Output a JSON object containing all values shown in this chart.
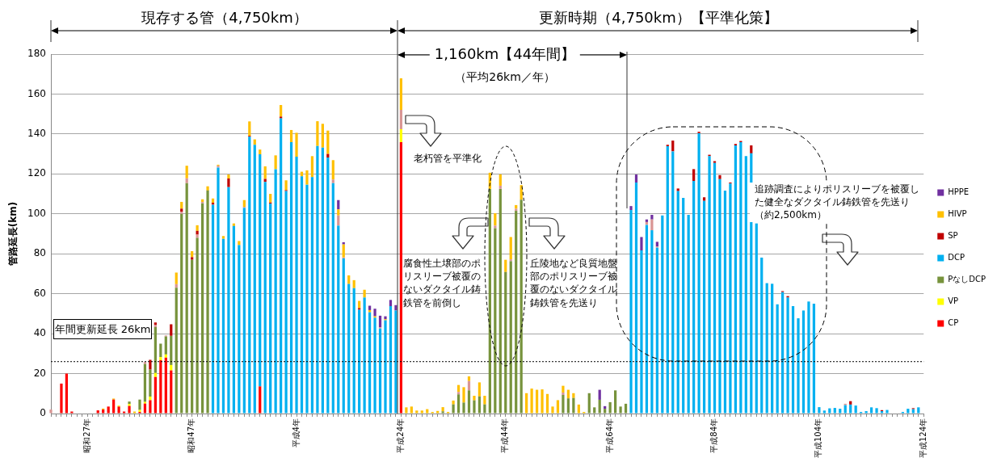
{
  "chart_data": {
    "type": "bar",
    "stacked": true,
    "ylabel": "管路延長(km)",
    "categories": [
      null,
      null,
      null,
      null,
      null,
      null,
      null,
      "昭和27年",
      null,
      null,
      null,
      null,
      null,
      null,
      null,
      null,
      null,
      null,
      null,
      null,
      null,
      null,
      null,
      null,
      null,
      null,
      null,
      "昭和47年",
      null,
      null,
      null,
      null,
      null,
      null,
      null,
      null,
      null,
      null,
      null,
      null,
      null,
      null,
      null,
      null,
      null,
      null,
      null,
      "平成4年",
      null,
      null,
      null,
      null,
      null,
      null,
      null,
      null,
      null,
      null,
      null,
      null,
      null,
      null,
      null,
      null,
      null,
      null,
      null,
      "平成24年",
      null,
      null,
      null,
      null,
      null,
      null,
      null,
      null,
      null,
      null,
      null,
      null,
      null,
      null,
      null,
      null,
      null,
      null,
      null,
      "平成44年",
      null,
      null,
      null,
      null,
      null,
      null,
      null,
      null,
      null,
      null,
      null,
      null,
      null,
      null,
      null,
      null,
      null,
      null,
      null,
      "平成64年",
      null,
      null,
      null,
      null,
      null,
      null,
      null,
      null,
      null,
      null,
      null,
      null,
      null,
      null,
      null,
      null,
      null,
      null,
      null,
      "平成84年",
      null,
      null,
      null,
      null,
      null,
      null,
      null,
      null,
      null,
      null,
      null,
      null,
      null,
      null,
      null,
      null,
      null,
      null,
      null,
      "平成104年",
      null,
      null,
      null,
      null,
      null,
      null,
      null,
      null,
      null,
      null,
      null,
      null,
      null,
      null,
      null,
      null,
      null,
      null,
      null,
      "平成124年"
    ],
    "series": [
      {
        "name": "CP",
        "color": "#ff0000",
        "values": [
          0,
          0,
          15,
          20,
          1,
          0,
          0,
          0,
          0,
          1.6,
          2,
          3.5,
          7,
          3.5,
          1,
          3.8,
          0,
          0.8,
          5,
          6.7,
          18.3,
          26.7,
          28,
          21.6,
          0,
          0,
          0,
          0,
          0,
          0,
          0,
          0,
          0,
          0,
          0,
          0,
          0,
          0,
          0,
          0,
          13.6,
          0,
          0,
          0,
          0,
          0,
          0,
          0,
          0,
          0,
          0,
          0,
          0,
          0,
          0,
          0,
          0,
          0,
          0,
          0,
          0,
          0,
          0,
          0,
          0,
          0,
          0,
          135.9,
          0,
          0,
          0,
          0,
          0,
          0,
          0,
          0,
          0,
          0,
          0,
          0,
          0,
          0,
          0,
          0,
          0,
          0,
          0,
          0,
          0,
          0,
          0,
          0,
          0,
          0,
          0,
          0,
          0,
          0,
          0,
          0,
          0,
          0,
          0,
          0,
          0,
          0,
          0,
          0,
          0,
          0,
          0,
          0,
          0,
          0,
          0,
          0,
          0,
          0,
          0,
          0,
          0,
          0,
          0,
          0,
          0,
          0,
          0,
          0,
          0,
          0,
          0,
          0,
          0,
          0,
          0,
          0,
          0,
          0,
          0,
          0,
          0,
          0,
          0,
          0,
          0,
          0,
          0,
          0,
          0,
          0,
          0,
          0,
          0,
          0,
          0,
          0,
          0,
          0,
          0,
          0,
          0,
          0,
          0,
          0,
          0,
          0,
          0,
          0
        ]
      },
      {
        "name": "VP",
        "color": "#ffff00",
        "values": [
          0,
          0,
          0,
          0,
          0,
          0,
          0,
          0,
          0,
          0,
          0,
          0,
          0,
          0.5,
          0,
          1,
          0,
          1,
          0.8,
          1.8,
          2,
          1.6,
          1.6,
          2.7,
          0,
          0,
          0,
          0,
          0,
          0,
          0,
          0,
          0,
          0,
          0,
          0,
          0,
          0,
          0,
          0,
          0,
          0,
          0,
          0,
          0,
          0,
          0,
          0,
          0,
          0,
          0,
          0,
          0,
          0,
          0,
          0,
          0,
          0,
          0,
          0,
          0,
          0,
          0,
          0,
          0,
          0,
          0,
          6.5,
          0,
          0,
          0,
          0,
          0,
          0,
          0,
          0,
          0,
          0,
          0,
          0,
          0,
          0,
          0,
          0,
          0,
          0,
          0,
          0,
          0,
          0,
          0,
          0,
          0,
          0,
          0,
          0,
          0,
          0,
          0,
          0,
          0,
          0,
          0,
          0,
          0,
          0,
          0,
          0,
          0,
          0,
          0,
          0,
          0,
          0,
          0,
          0,
          0,
          0,
          0,
          0,
          0,
          0,
          0,
          0,
          0,
          0,
          0,
          0,
          0,
          0,
          0,
          0,
          0,
          0,
          0,
          0,
          0,
          0,
          0,
          0,
          0,
          0,
          0,
          0,
          0,
          0,
          0,
          0,
          0,
          0,
          0,
          0,
          0,
          0,
          0,
          0,
          0,
          0,
          0,
          0,
          0,
          0,
          0,
          0,
          0,
          0,
          0,
          0
        ]
      },
      {
        "name": "PなしDCP",
        "color": "#77933c",
        "values": [
          0,
          0,
          0,
          0,
          0,
          0,
          0,
          0,
          0,
          0,
          0,
          0,
          0,
          0,
          0,
          1.2,
          0,
          5.2,
          19,
          13.5,
          23,
          6.7,
          9,
          14.6,
          63,
          100,
          115.4,
          77,
          88,
          105.3,
          111.7,
          0,
          0,
          0,
          0,
          0,
          0,
          0,
          0,
          0,
          0,
          0,
          0,
          0,
          0,
          0,
          0,
          0,
          0,
          0,
          0,
          0,
          0,
          0,
          0,
          0,
          0,
          0,
          0,
          0,
          0,
          0,
          0,
          0,
          0,
          0,
          0,
          0,
          0,
          0,
          0,
          0,
          0,
          0,
          0,
          1.1,
          0,
          4.6,
          9.6,
          5.5,
          11.6,
          6.6,
          8.6,
          4.6,
          112.5,
          92.8,
          112.5,
          70.9,
          76.3,
          101.5,
          107.1,
          0,
          0,
          0,
          0,
          0,
          0,
          0,
          9.3,
          7.6,
          7.8,
          0,
          0,
          10.2,
          3.1,
          6.9,
          2.4,
          5.7,
          11.6,
          3.5,
          4.9,
          0,
          0,
          0,
          0,
          0,
          0,
          0,
          0,
          0,
          0,
          0,
          0,
          0,
          0,
          0,
          0,
          0,
          0,
          0,
          0,
          0,
          0,
          0,
          0,
          0,
          0,
          0,
          0,
          0,
          0,
          0,
          0,
          0,
          0,
          0,
          0,
          0,
          0,
          0,
          0,
          0,
          0,
          0,
          0,
          0,
          0,
          0,
          0,
          0,
          0,
          0,
          0,
          0,
          0,
          0,
          0,
          0
        ]
      },
      {
        "name": "DCP",
        "color": "#00b0f0",
        "values": [
          0,
          0,
          0,
          0,
          0,
          0,
          0,
          0,
          0,
          0,
          0,
          0,
          0,
          0,
          0,
          0,
          0,
          0,
          0,
          0,
          0,
          0,
          0,
          0,
          0,
          0,
          0,
          0,
          0,
          0,
          0,
          104.6,
          123.2,
          87.5,
          113.4,
          93.9,
          84.4,
          103,
          138.6,
          134.6,
          116.2,
          116,
          105.2,
          122.4,
          147.8,
          111.4,
          135.9,
          128.6,
          118.8,
          114.6,
          118.4,
          134,
          133.2,
          128.2,
          115.4,
          94.1,
          77.7,
          64.9,
          62.8,
          52,
          58.1,
          50.7,
          48,
          42.6,
          46.7,
          53.8,
          51.6,
          0,
          0,
          0,
          0,
          0,
          0,
          0,
          0,
          0,
          0,
          0,
          0,
          0,
          0,
          0,
          0,
          0,
          0,
          0,
          0,
          0,
          0,
          0,
          0,
          0,
          0,
          0,
          0,
          0,
          0,
          0,
          0,
          0,
          0,
          0,
          0,
          0,
          0,
          0,
          0,
          0,
          0,
          0,
          0,
          101.9,
          115.7,
          81.7,
          94.5,
          91.8,
          83.1,
          99.2,
          133.9,
          131.3,
          111.4,
          108,
          99.5,
          116.5,
          140.4,
          106.5,
          128.9,
          125.5,
          117.4,
          111.6,
          115.2,
          134.3,
          135.9,
          128.9,
          130.3,
          95.2,
          78.1,
          65.3,
          65,
          54.7,
          60.8,
          58.1,
          53.8,
          47.7,
          51.6,
          56.1,
          55,
          3.2,
          1.5,
          2.6,
          2.8,
          2.4,
          4.2,
          4.5,
          4,
          0.8,
          1.2,
          3.1,
          2.7,
          1.2,
          1.8,
          0,
          0,
          0.8,
          2.4,
          2.2,
          3.1,
          0
        ]
      },
      {
        "color": "#d99694",
        "values": [
          2,
          0,
          0,
          0,
          0,
          0,
          0,
          0,
          0,
          0,
          0,
          0,
          0,
          0,
          0,
          0,
          0,
          0,
          1,
          0,
          1.2,
          0,
          0.5,
          0,
          1.8,
          1,
          2.4,
          0,
          1.6,
          0.7,
          0,
          0,
          0.9,
          0,
          0,
          0,
          0,
          0.5,
          0,
          0,
          0,
          0,
          0,
          0,
          0,
          0,
          0,
          0,
          0,
          0,
          0,
          0,
          0,
          0,
          1.8,
          5.1,
          0.5,
          0,
          0,
          0,
          0,
          0,
          0,
          0.5,
          0,
          0,
          0,
          9.7,
          0,
          0,
          0,
          0,
          0,
          0,
          0,
          0,
          0,
          0,
          1.2,
          0,
          4.7,
          0,
          0,
          0,
          0,
          1.3,
          1.6,
          0,
          0.9,
          1.1,
          0,
          0,
          0,
          0,
          0,
          0,
          0,
          0,
          1.2,
          0,
          0,
          0,
          0,
          0,
          0,
          0,
          0,
          0,
          0,
          0,
          0,
          0,
          0,
          0,
          1.4,
          5.4,
          0.5,
          0,
          0,
          0,
          0,
          0,
          0,
          0,
          0,
          0,
          0,
          0,
          0,
          0,
          0,
          0,
          0,
          0,
          0,
          0,
          0,
          0,
          0,
          0,
          0,
          0,
          0,
          0,
          0,
          0,
          0,
          0,
          0,
          0,
          0,
          0,
          0.7,
          0,
          0,
          0,
          0,
          0,
          0,
          0,
          0,
          0,
          0,
          0,
          0,
          0,
          0,
          0
        ]
      },
      {
        "name": "SP",
        "color": "#c00000",
        "values": [
          0,
          0,
          0,
          0,
          0,
          0,
          0,
          0,
          0,
          0,
          0,
          0,
          0,
          0,
          0,
          0,
          0,
          0,
          0,
          4.9,
          1.1,
          0,
          0,
          5.8,
          0,
          1.6,
          0,
          1.3,
          1.9,
          0,
          0,
          1,
          0,
          0,
          4.3,
          0,
          0,
          0,
          0.5,
          0,
          0,
          1.5,
          0.5,
          0,
          0.9,
          0.5,
          0,
          0,
          0,
          0,
          0,
          0,
          0,
          1.8,
          0,
          0,
          0,
          0,
          0,
          0.8,
          0,
          0,
          0,
          0,
          0,
          0,
          0,
          0,
          0,
          0,
          0,
          0,
          0,
          0,
          0,
          0,
          0,
          0,
          0,
          0,
          0,
          0,
          0,
          0,
          0,
          0,
          0,
          0,
          0,
          0,
          0,
          0,
          0,
          0,
          0,
          0,
          0,
          0,
          0,
          0,
          0,
          0,
          0,
          0,
          0,
          0,
          0,
          0,
          0,
          0,
          0,
          0,
          0,
          0,
          0,
          0,
          0,
          0,
          0.7,
          5.4,
          1.3,
          0,
          0,
          5.9,
          0.7,
          1.8,
          0.7,
          0.9,
          2,
          0,
          0.5,
          0.7,
          0.6,
          0,
          4,
          0,
          0,
          0,
          0,
          0,
          0.5,
          0.7,
          0,
          0,
          0,
          0,
          0,
          0,
          0,
          0,
          0,
          0,
          0,
          1.7,
          0,
          0,
          0,
          0,
          0,
          0.5,
          0,
          0,
          0,
          0,
          0,
          0.5,
          0,
          0
        ]
      },
      {
        "name": "HIVP",
        "color": "#ffc000",
        "values": [
          0,
          0,
          0,
          0,
          0,
          0,
          0,
          0,
          0,
          0,
          0.5,
          0,
          0.5,
          0,
          0,
          0,
          1,
          0,
          0,
          0,
          0,
          0,
          0,
          0,
          5.8,
          3.4,
          6.3,
          3,
          2.8,
          1.3,
          2.1,
          2.1,
          0.5,
          1.4,
          2,
          1.3,
          2,
          3.4,
          7.2,
          2.7,
          2.4,
          6.3,
          4.3,
          6.9,
          5.8,
          4.9,
          6.1,
          12,
          2.3,
          7.2,
          10.5,
          12.4,
          11.9,
          11.7,
          9.7,
          3.1,
          6.5,
          4.3,
          4,
          3.6,
          3.9,
          1.1,
          0.7,
          0,
          0.5,
          0,
          0,
          15.8,
          3.1,
          3.5,
          1.5,
          1.5,
          2.2,
          0.8,
          1.3,
          2.1,
          0.8,
          1.9,
          3.5,
          7.7,
          2.3,
          2.3,
          7,
          4.3,
          8.1,
          6.2,
          5.7,
          6.1,
          11.2,
          1.8,
          7.3,
          10.2,
          12.5,
          11.9,
          12.1,
          9.8,
          3.5,
          6.7,
          3.4,
          4.3,
          2.4,
          4.5,
          0.8,
          0,
          0,
          0,
          0,
          0,
          0,
          0,
          0,
          0,
          0,
          0,
          0,
          0,
          0,
          0,
          0,
          0,
          0,
          0,
          0,
          0,
          0,
          0,
          0,
          0,
          0,
          0,
          0,
          0,
          0,
          0,
          0,
          0,
          0,
          0,
          0,
          0,
          0,
          0,
          0,
          0,
          0,
          0,
          0,
          0,
          0,
          0,
          0,
          0,
          0,
          0,
          0,
          0,
          0,
          0,
          0,
          0,
          0,
          0,
          0,
          0,
          0,
          0,
          0,
          0
        ]
      },
      {
        "name": "HPPE",
        "color": "#7030a0",
        "values": [
          0,
          0,
          0,
          0,
          0,
          0,
          0,
          0,
          0,
          0,
          0,
          0,
          0,
          0,
          0,
          0,
          0,
          0,
          0,
          0,
          0,
          0,
          0,
          0,
          0,
          0,
          0,
          0,
          0,
          0,
          0,
          0,
          0,
          0,
          0,
          0,
          0,
          0,
          0,
          0,
          0,
          0,
          0,
          0,
          0,
          0,
          0,
          0,
          0,
          0,
          0,
          0,
          0,
          0,
          0,
          4.6,
          1.1,
          0,
          0,
          0,
          0,
          2.2,
          3.8,
          5.9,
          1.5,
          3.1,
          2.7,
          0,
          0,
          0,
          0,
          0,
          0,
          0,
          0,
          0,
          0,
          0,
          0,
          0,
          0,
          0,
          0,
          0,
          0,
          0,
          0,
          0,
          0,
          0,
          0,
          0,
          0,
          0,
          0,
          0,
          0,
          0,
          0,
          0,
          0,
          0,
          0,
          0,
          0,
          5,
          1.3,
          0,
          0,
          0,
          0,
          2,
          4,
          6.7,
          1.3,
          2.3,
          2.4,
          0,
          0,
          0,
          0,
          0,
          0,
          0,
          0,
          0,
          0,
          0,
          0,
          0,
          0,
          0,
          0,
          0,
          0,
          0,
          0,
          0,
          0,
          0,
          0,
          0,
          0,
          0,
          0,
          0,
          0,
          0,
          0,
          0,
          0,
          0,
          0,
          0,
          0,
          0,
          0,
          0,
          0,
          0,
          0,
          0,
          0,
          0,
          0,
          0,
          0,
          0
        ]
      }
    ],
    "ylim": [
      0,
      180
    ],
    "yticks": [
      0,
      20,
      40,
      60,
      80,
      100,
      120,
      140,
      160,
      180
    ],
    "grid": "y",
    "legend": "right",
    "ref_lines": [
      {
        "axis": "y",
        "value": 26,
        "label": "年間更新延長 26km",
        "line_style": "dotted",
        "color": "#000000"
      }
    ],
    "annotations": [
      "現存する管（4,750km）",
      "更新時期（4,750km）【平準化策】",
      "1,160km【44年間】",
      "（平均26km／年）",
      "老朽管を平準化",
      "腐食性土壌部のポリスリーブ被覆のないダクタイル鋳鉄管を前倒し",
      "丘陵地など良質地盤部のポリスリーブ被覆のないダクタイル鋳鉄管を先送り",
      "追跡調査によりポリスリーブを被覆した健全なダクタイル鋳鉄管を先送り（約2,500km）"
    ]
  }
}
